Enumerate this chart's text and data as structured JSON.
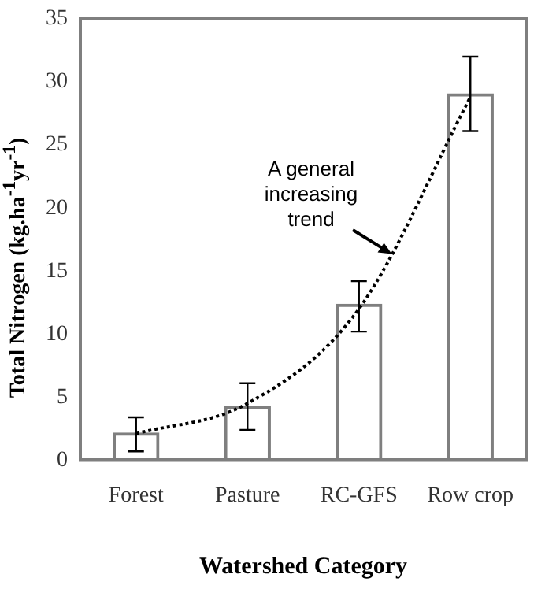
{
  "chart_data": {
    "type": "bar",
    "xlabel": "Watershed Category",
    "ylabel": "Total Nitrogen (kg.ha$^{-1}$yr$^{-1}$)",
    "categories": [
      "Forest",
      "Pasture",
      "RC-GFS",
      "Row crop"
    ],
    "series": [
      {
        "color": "#7f7f7f",
        "values": [
          2.2,
          4.3,
          12.4,
          29.1
        ],
        "errors": [
          [
            0.7,
            3.4
          ],
          [
            2.4,
            6.1
          ],
          [
            10.2,
            14.2
          ],
          [
            26.1,
            32.0
          ]
        ]
      },
      {
        "type": "line",
        "color": "#000000",
        "line_style": "dotted",
        "marker": "none",
        "values": [
          2.1,
          4.5,
          12.0,
          28.8
        ]
      }
    ],
    "ylim": [
      0,
      35
    ],
    "yticks": [
      0,
      5,
      10,
      15,
      20,
      25,
      30,
      35
    ],
    "grid": false,
    "legend": false,
    "annotations": [
      "A general\nincreasing\ntrend"
    ]
  }
}
